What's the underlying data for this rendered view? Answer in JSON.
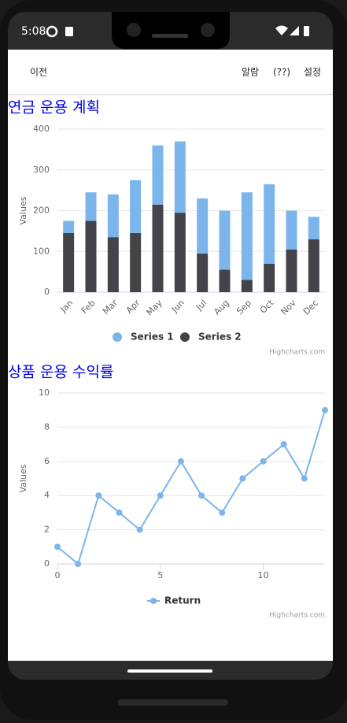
{
  "status_bar": {
    "time": "5:08"
  },
  "nav": {
    "back": "이전",
    "items": [
      "알람",
      "(??)",
      "설정"
    ]
  },
  "chart_data": [
    {
      "type": "bar",
      "stacked": true,
      "title": "연금 운용 계획",
      "y_label": "Values",
      "categories": [
        "Jan",
        "Feb",
        "Mar",
        "Apr",
        "May",
        "Jun",
        "Jul",
        "Aug",
        "Sep",
        "Oct",
        "Nov",
        "Dec"
      ],
      "series": [
        {
          "name": "Series 1",
          "color": "#7cb5ec",
          "values": [
            30,
            70,
            105,
            130,
            145,
            175,
            135,
            145,
            215,
            195,
            95,
            55
          ]
        },
        {
          "name": "Series 2",
          "color": "#434348",
          "values": [
            145,
            175,
            135,
            145,
            215,
            195,
            95,
            55,
            30,
            70,
            105,
            130
          ]
        }
      ],
      "ylim": [
        0,
        400
      ],
      "yticks": [
        0,
        100,
        200,
        300,
        400
      ],
      "grid": true,
      "credits": "Highcharts.com"
    },
    {
      "type": "line",
      "title": "상품 운용 수익률",
      "y_label": "Values",
      "x": [
        0,
        1,
        2,
        3,
        4,
        5,
        6,
        7,
        8,
        9,
        10,
        11,
        12,
        13
      ],
      "series": [
        {
          "name": "Return",
          "color": "#7cb5ec",
          "values": [
            1,
            0,
            4,
            3,
            2,
            4,
            6,
            4,
            3,
            5,
            6,
            7,
            5,
            9
          ]
        }
      ],
      "xlim": [
        0,
        13
      ],
      "xticks": [
        0,
        5,
        10
      ],
      "ylim": [
        0,
        10
      ],
      "yticks": [
        0,
        2,
        4,
        6,
        8,
        10
      ],
      "grid": true,
      "credits": "Highcharts.com"
    }
  ]
}
